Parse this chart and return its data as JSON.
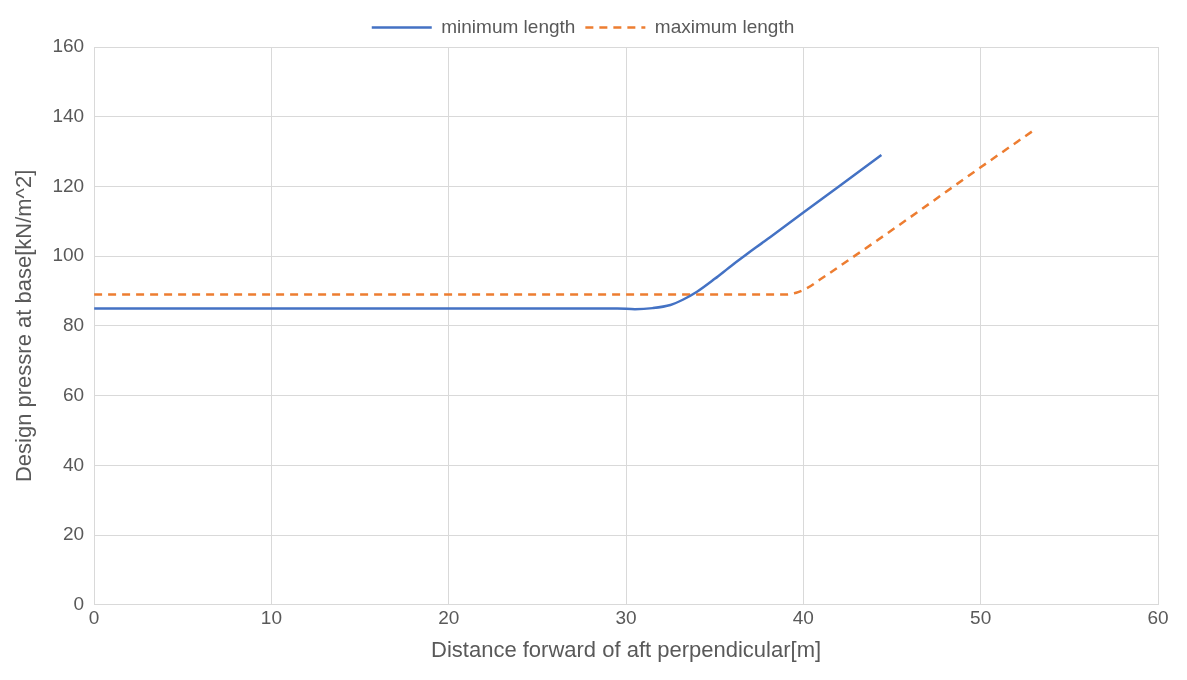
{
  "chart_data": {
    "type": "line",
    "xlabel": "Distance forward of aft perpendicular[m]",
    "ylabel": "Design pressre at base[kN/m^2]",
    "xlim": [
      0,
      60
    ],
    "xticks": [
      0,
      10,
      20,
      30,
      40,
      50,
      60
    ],
    "ylim": [
      0,
      160
    ],
    "yticks": [
      0,
      20,
      40,
      60,
      80,
      100,
      120,
      140,
      160
    ],
    "grid": true,
    "legend": "top",
    "marker": "none",
    "series": [
      {
        "name": "minimum length",
        "color": "#4472c4",
        "line_style": "solid",
        "x": [
          0,
          10,
          20,
          29.5,
          30.5,
          31.5,
          32.5,
          33.2,
          34,
          35,
          36,
          38,
          40,
          42,
          44.4
        ],
        "values": [
          85,
          85,
          85,
          85,
          84.8,
          85.1,
          86,
          87.5,
          89.8,
          93.5,
          97.5,
          105,
          112.5,
          120,
          129
        ]
      },
      {
        "name": "maximum length",
        "color": "#ed7d31",
        "line_style": "dashed",
        "x": [
          0,
          10,
          20,
          30,
          39,
          39.6,
          40.2,
          41,
          45,
          50,
          53.1
        ],
        "values": [
          89,
          89,
          89,
          89,
          89,
          89.5,
          90.8,
          93.5,
          107.5,
          125.5,
          136.5
        ]
      }
    ]
  }
}
